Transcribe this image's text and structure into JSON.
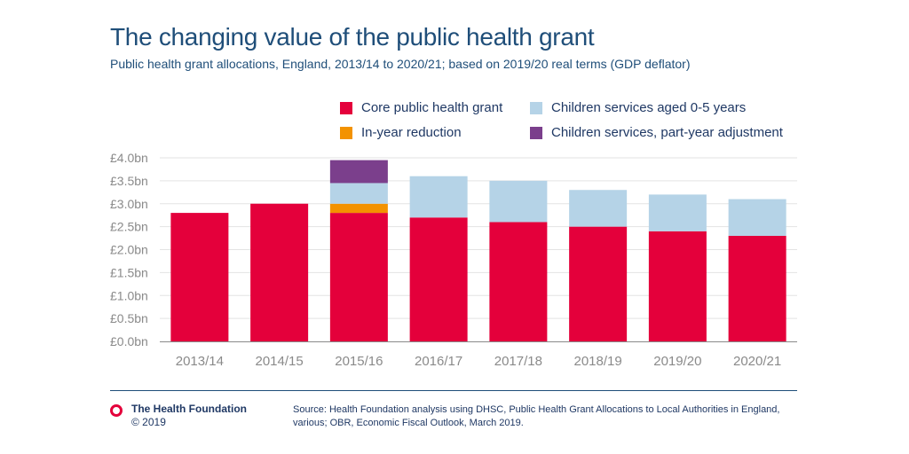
{
  "title": "The changing value of the public health grant",
  "subtitle": "Public health grant allocations, England, 2013/14 to 2020/21; based on 2019/20 real terms (GDP deflator)",
  "footer": {
    "org_name": "The Health Foundation",
    "copyright": "© 2019",
    "source": "Source: Health Foundation analysis using DHSC, Public Health Grant Allocations to Local Authorities in England, various; OBR, Economic Fiscal Outlook, March 2019."
  },
  "colors": {
    "core": "#e4003b",
    "in_year": "#f39200",
    "children": "#b5d3e7",
    "part_year": "#7b3f8c",
    "brand": "#e4003b"
  },
  "chart_data": {
    "type": "bar",
    "stacked": true,
    "categories": [
      "2013/14",
      "2014/15",
      "2015/16",
      "2016/17",
      "2017/18",
      "2018/19",
      "2019/20",
      "2020/21"
    ],
    "series": [
      {
        "name": "Core public health grant",
        "color": "#e4003b",
        "values": [
          2.8,
          3.0,
          2.8,
          2.7,
          2.6,
          2.5,
          2.4,
          2.3
        ]
      },
      {
        "name": "In-year reduction",
        "color": "#f39200",
        "values": [
          0,
          0,
          0.2,
          0,
          0,
          0,
          0,
          0
        ]
      },
      {
        "name": "Children services aged 0-5 years",
        "color": "#b5d3e7",
        "values": [
          0,
          0,
          0.45,
          0.9,
          0.9,
          0.8,
          0.8,
          0.8
        ]
      },
      {
        "name": "Children services, part-year adjustment",
        "color": "#7b3f8c",
        "values": [
          0,
          0,
          0.5,
          0,
          0,
          0,
          0,
          0
        ]
      }
    ],
    "yticks": [
      "£0.0bn",
      "£0.5bn",
      "£1.0bn",
      "£1.5bn",
      "£2.0bn",
      "£2.5bn",
      "£3.0bn",
      "£3.5bn",
      "£4.0bn"
    ],
    "ylim": [
      0,
      4.0
    ],
    "grid": true,
    "legend_position": "top-right"
  }
}
